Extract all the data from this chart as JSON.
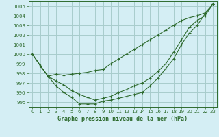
{
  "title": "Graphe pression niveau de la mer (hPa)",
  "bg_color": "#d4eef4",
  "grid_color": "#a8cccc",
  "line_color": "#2d6a2d",
  "ylim": [
    994.5,
    1005.5
  ],
  "xlim": [
    -0.5,
    23.5
  ],
  "yticks": [
    995,
    996,
    997,
    998,
    999,
    1000,
    1001,
    1002,
    1003,
    1004,
    1005
  ],
  "xticks": [
    0,
    1,
    2,
    3,
    4,
    5,
    6,
    7,
    8,
    9,
    10,
    11,
    12,
    13,
    14,
    15,
    16,
    17,
    18,
    19,
    20,
    21,
    22,
    23
  ],
  "line1": [
    1000.0,
    998.8,
    997.7,
    997.9,
    997.8,
    997.9,
    998.0,
    998.1,
    998.3,
    998.4,
    999.0,
    999.5,
    1000.0,
    1000.5,
    1001.0,
    1001.5,
    1002.0,
    1002.5,
    1003.0,
    1003.5,
    1003.8,
    1004.0,
    1004.3,
    1005.2
  ],
  "line2": [
    1000.0,
    998.8,
    997.7,
    996.7,
    996.0,
    995.5,
    994.8,
    994.8,
    994.8,
    995.1,
    995.2,
    995.4,
    995.6,
    995.8,
    996.0,
    996.7,
    997.5,
    998.5,
    999.5,
    1001.0,
    1002.2,
    1003.0,
    1004.2,
    1005.2
  ],
  "line3": [
    1000.0,
    998.8,
    997.7,
    997.2,
    996.8,
    996.2,
    995.8,
    995.5,
    995.2,
    995.4,
    995.6,
    996.0,
    996.3,
    996.7,
    997.0,
    997.5,
    998.2,
    999.0,
    1000.2,
    1001.5,
    1002.8,
    1003.5,
    1004.0,
    1005.2
  ]
}
